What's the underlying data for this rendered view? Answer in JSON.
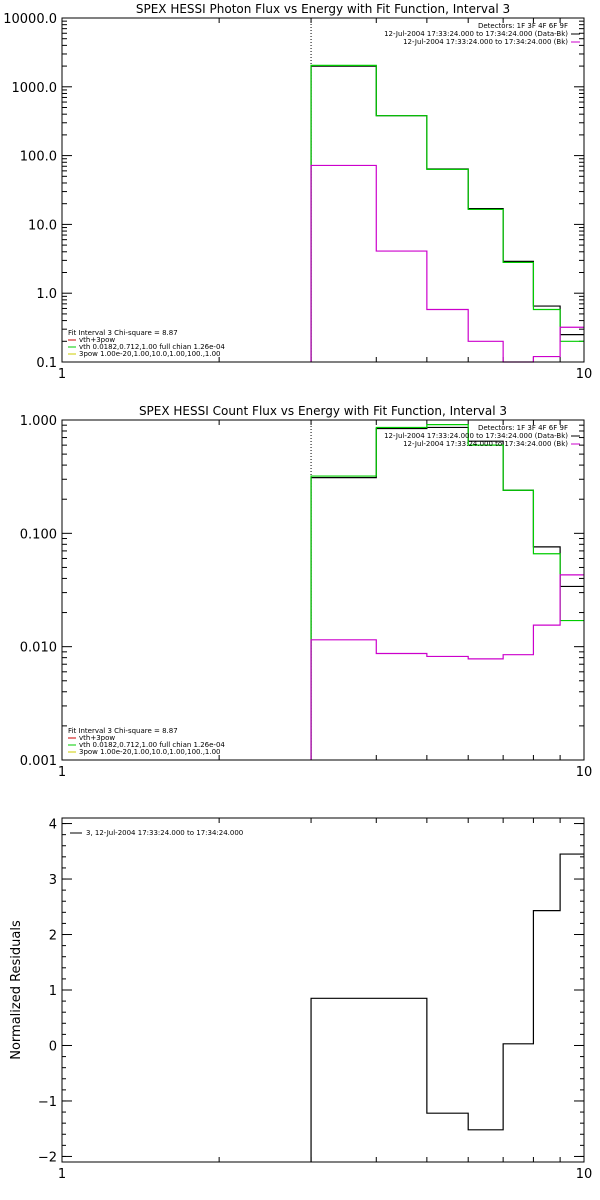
{
  "charts": [
    {
      "id": "photon",
      "title": "SPEX HESSI Photon Flux vs Energy with Fit Function, Interval 3",
      "xscale": "log",
      "yscale": "log",
      "xlim": [
        1,
        10
      ],
      "ylim": [
        0.1,
        10000
      ],
      "xticks": [
        {
          "v": 1,
          "label": "1"
        },
        {
          "v": 10,
          "label": "10"
        }
      ],
      "yticks": [
        {
          "v": 0.1,
          "label": "0.1"
        },
        {
          "v": 1,
          "label": "1.0"
        },
        {
          "v": 10,
          "label": "10.0"
        },
        {
          "v": 100,
          "label": "100.0"
        },
        {
          "v": 1000,
          "label": "1000.0"
        },
        {
          "v": 10000,
          "label": "10000.0"
        }
      ],
      "ylabel": "",
      "vline": 3,
      "legend_tr": [
        {
          "text": "Detectors: 1F 3F 4F 6F 9F",
          "color": ""
        },
        {
          "text": "12-Jul-2004 17:33:24.000 to 17:34:24.000 (Data-Bk)",
          "color": "#000000"
        },
        {
          "text": "12-Jul-2004 17:33:24.000 to 17:34:24.000 (Bk)",
          "color": "#cc00cc"
        }
      ],
      "legend_bl": [
        {
          "text": "Fit Interval 3   Chi-square = 8.87",
          "color": ""
        },
        {
          "text": "vth+3pow",
          "color": "#cc0000"
        },
        {
          "text": "vth 0.0182,0.712,1.00  full chian 1.26e-04",
          "color": "#00cc00"
        },
        {
          "text": "3pow 1.00e-20,1.00,10.0,1.00,100.,1.00",
          "color": "#cccc00"
        }
      ],
      "edges": [
        3,
        4,
        5,
        6,
        7,
        8,
        9,
        10
      ],
      "series": [
        {
          "color": "#000000",
          "values": [
            2000,
            380,
            64,
            17,
            2.9,
            0.65,
            0.25
          ]
        },
        {
          "color": "#00cc00",
          "values": [
            2050,
            380,
            63,
            16.5,
            2.8,
            0.58,
            0.2
          ]
        },
        {
          "color": "#cc00cc",
          "values": [
            72,
            4.1,
            0.58,
            0.2,
            0.09,
            0.12,
            0.32
          ]
        }
      ]
    },
    {
      "id": "count",
      "title": "SPEX HESSI Count Flux vs Energy with Fit Function, Interval 3",
      "xscale": "log",
      "yscale": "log",
      "xlim": [
        1,
        10
      ],
      "ylim": [
        0.001,
        1
      ],
      "xticks": [
        {
          "v": 1,
          "label": "1"
        },
        {
          "v": 10,
          "label": "10"
        }
      ],
      "yticks": [
        {
          "v": 0.001,
          "label": "0.001"
        },
        {
          "v": 0.01,
          "label": "0.010"
        },
        {
          "v": 0.1,
          "label": "0.100"
        },
        {
          "v": 1,
          "label": "1.000"
        }
      ],
      "ylabel": "",
      "vline": 3,
      "legend_tr": [
        {
          "text": "Detectors: 1F 3F 4F 6F 9F",
          "color": ""
        },
        {
          "text": "12-Jul-2004 17:33:24.000 to 17:34:24.000 (Data-Bk)",
          "color": "#000000"
        },
        {
          "text": "12-Jul-2004 17:33:24.000 to 17:34:24.000 (Bk)",
          "color": "#cc00cc"
        }
      ],
      "legend_bl": [
        {
          "text": "Fit Interval 3   Chi-square = 8.87",
          "color": ""
        },
        {
          "text": "vth+3pow",
          "color": "#cc0000"
        },
        {
          "text": "vth 0.0182,0.712,1.00  full chian 1.26e-04",
          "color": "#00cc00"
        },
        {
          "text": "3pow 1.00e-20,1.00,10.0,1.00,100.,1.00",
          "color": "#cccc00"
        }
      ],
      "edges": [
        3,
        4,
        5,
        6,
        7,
        8,
        9,
        10
      ],
      "series": [
        {
          "color": "#000000",
          "values": [
            0.31,
            0.84,
            0.86,
            0.65,
            0.24,
            0.076,
            0.034
          ]
        },
        {
          "color": "#00cc00",
          "values": [
            0.32,
            0.86,
            0.91,
            0.6,
            0.24,
            0.066,
            0.017
          ]
        },
        {
          "color": "#cc00cc",
          "values": [
            0.0115,
            0.0087,
            0.0082,
            0.0078,
            0.0085,
            0.0155,
            0.043
          ]
        }
      ]
    },
    {
      "id": "residuals",
      "title": "",
      "xscale": "log",
      "yscale": "linear",
      "xlim": [
        1,
        10
      ],
      "ylim": [
        -2.1,
        4.1
      ],
      "xticks": [
        {
          "v": 1,
          "label": "1"
        },
        {
          "v": 10,
          "label": "10"
        }
      ],
      "yticks": [
        {
          "v": -2,
          "label": "−2"
        },
        {
          "v": -1,
          "label": "−1"
        },
        {
          "v": 0,
          "label": "0"
        },
        {
          "v": 1,
          "label": "1"
        },
        {
          "v": 2,
          "label": "2"
        },
        {
          "v": 3,
          "label": "3"
        },
        {
          "v": 4,
          "label": "4"
        }
      ],
      "ylabel": "Normalized Residuals",
      "vline": null,
      "legend_tl": [
        {
          "text": "3, 12-Jul-2004 17:33:24.000 to 17:34:24.000",
          "color": "#000000"
        }
      ],
      "edges": [
        3,
        4,
        5,
        6,
        7,
        8,
        9,
        10
      ],
      "series": [
        {
          "color": "#000000",
          "values": [
            0.85,
            0.85,
            -1.22,
            -1.52,
            0.03,
            2.43,
            3.45
          ]
        }
      ]
    }
  ],
  "chart_data": [
    {
      "type": "line",
      "title": "SPEX HESSI Photon Flux vs Energy with Fit Function, Interval 3",
      "xscale": "log",
      "yscale": "log",
      "xlim": [
        1,
        10
      ],
      "ylim": [
        0.1,
        10000
      ],
      "x_bin_edges": [
        3,
        4,
        5,
        6,
        7,
        8,
        9,
        10
      ],
      "series": [
        {
          "name": "12-Jul-2004 17:33:24.000 to 17:34:24.000 (Data-Bk)",
          "values": [
            2000,
            380,
            64,
            17,
            2.9,
            0.65,
            0.25
          ]
        },
        {
          "name": "vth 0.0182,0.712,1.00  full chian 1.26e-04",
          "values": [
            2050,
            380,
            63,
            16.5,
            2.8,
            0.58,
            0.2
          ]
        },
        {
          "name": "12-Jul-2004 17:33:24.000 to 17:34:24.000 (Bk)",
          "values": [
            72,
            4.1,
            0.58,
            0.2,
            0.09,
            0.12,
            0.32
          ]
        }
      ]
    },
    {
      "type": "line",
      "title": "SPEX HESSI Count Flux vs Energy with Fit Function, Interval 3",
      "xscale": "log",
      "yscale": "log",
      "xlim": [
        1,
        10
      ],
      "ylim": [
        0.001,
        1
      ],
      "x_bin_edges": [
        3,
        4,
        5,
        6,
        7,
        8,
        9,
        10
      ],
      "series": [
        {
          "name": "12-Jul-2004 17:33:24.000 to 17:34:24.000 (Data-Bk)",
          "values": [
            0.31,
            0.84,
            0.86,
            0.65,
            0.24,
            0.076,
            0.034
          ]
        },
        {
          "name": "vth 0.0182,0.712,1.00  full chian 1.26e-04",
          "values": [
            0.32,
            0.86,
            0.91,
            0.6,
            0.24,
            0.066,
            0.017
          ]
        },
        {
          "name": "12-Jul-2004 17:33:24.000 to 17:34:24.000 (Bk)",
          "values": [
            0.0115,
            0.0087,
            0.0082,
            0.0078,
            0.0085,
            0.0155,
            0.043
          ]
        }
      ]
    },
    {
      "type": "line",
      "title": "",
      "ylabel": "Normalized Residuals",
      "xscale": "log",
      "yscale": "linear",
      "xlim": [
        1,
        10
      ],
      "ylim": [
        -2.1,
        4.1
      ],
      "x_bin_edges": [
        3,
        4,
        5,
        6,
        7,
        8,
        9,
        10
      ],
      "series": [
        {
          "name": "3, 12-Jul-2004 17:33:24.000 to 17:34:24.000",
          "values": [
            0.85,
            0.85,
            -1.22,
            -1.52,
            0.03,
            2.43,
            3.45
          ]
        }
      ]
    }
  ]
}
